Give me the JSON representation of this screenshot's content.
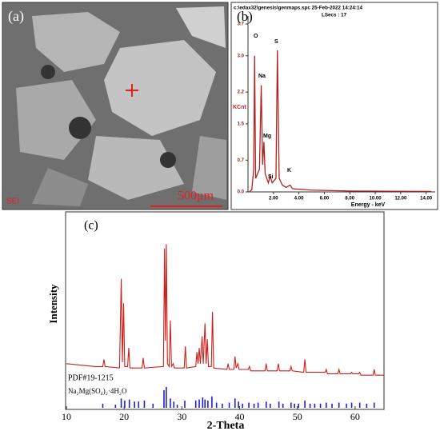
{
  "panel_a": {
    "label": "(a)",
    "detector": "SEI",
    "scale_bar": "500μm"
  },
  "chart_data": [
    {
      "type": "line",
      "panel_label": "(b)",
      "header": "c:\\edax32\\genesis\\genmaps.spc  25-Feb-2022 14:24:14",
      "subheader": "LSecs : 17",
      "y_label": "KCnt",
      "x_label": "Energy - keV",
      "peak_labels": [
        "O",
        "Na",
        "Mg",
        "Si",
        "S",
        "K"
      ],
      "x": [
        0.1,
        0.3,
        0.45,
        0.52,
        0.6,
        0.9,
        1.04,
        1.15,
        1.25,
        1.35,
        1.6,
        1.74,
        1.9,
        2.2,
        2.31,
        2.45,
        2.7,
        3.0,
        3.31,
        3.5,
        5,
        8,
        14.4
      ],
      "series": [
        {
          "color": "#b22222",
          "values": [
            0,
            0.05,
            0.5,
            3.0,
            0.3,
            0.5,
            2.35,
            0.6,
            1.1,
            0.4,
            0.2,
            0.35,
            0.2,
            0.3,
            3.12,
            0.3,
            0.15,
            0.1,
            0.15,
            0.07,
            0.04,
            0.02,
            0.01
          ]
        }
      ],
      "xlim": [
        0,
        14.4
      ],
      "ylim": [
        0,
        3.7
      ],
      "xticks": [
        {
          "value": 2,
          "label": "2.00"
        },
        {
          "value": 4,
          "label": "4.00"
        },
        {
          "value": 6,
          "label": "6.00"
        },
        {
          "value": 8,
          "label": "8.00"
        },
        {
          "value": 10,
          "label": "10.00"
        },
        {
          "value": 12,
          "label": "12.00"
        },
        {
          "value": 14,
          "label": "14.00"
        }
      ],
      "yticks": [
        {
          "value": 0,
          "label": "0.0"
        },
        0.7,
        1.5,
        2.2,
        {
          "value": 3,
          "label": "3.0"
        },
        3.7
      ]
    },
    {
      "type": "line",
      "panel_label": "(c)",
      "x_label": "2-Theta",
      "y_label": "Intensity",
      "x": [
        10,
        15,
        16.3,
        16.5,
        16.7,
        19.2,
        19.5,
        19.7,
        19.9,
        20.1,
        20.6,
        20.8,
        21.0,
        23.1,
        23.3,
        23.5,
        26.8,
        27.0,
        27.15,
        27.3,
        27.5,
        27.8,
        28.0,
        28.2,
        28.5,
        28.7,
        30.4,
        30.6,
        30.8,
        32.4,
        32.6,
        32.8,
        33.0,
        33.2,
        33.5,
        33.7,
        34.0,
        34.2,
        34.4,
        34.6,
        35.1,
        35.3,
        35.5,
        37.8,
        38.0,
        38.2,
        39.0,
        39.2,
        39.4,
        39.7,
        39.9,
        41.5,
        41.7,
        41.9,
        44.4,
        44.6,
        44.8,
        46.5,
        46.7,
        46.9,
        48.7,
        48.9,
        49.1,
        51.1,
        51.3,
        51.5,
        54.8,
        55.0,
        55.2,
        57.0,
        57.2,
        57.4,
        59.2,
        59.4,
        59.6,
        60.6,
        60.8,
        61.0,
        63.1,
        63.3,
        63.5,
        65
      ],
      "series": [
        {
          "color": "#cc1f1a",
          "values": [
            14,
            12,
            12,
            17,
            12,
            11,
            73,
            15,
            56,
            12,
            12,
            25,
            11,
            11,
            18,
            11,
            12,
            94,
            30,
            97,
            14,
            12,
            44,
            12,
            14,
            11,
            11,
            26,
            11,
            12,
            22,
            14,
            25,
            14,
            33,
            14,
            42,
            14,
            31,
            12,
            12,
            50,
            11,
            10,
            14,
            10,
            10,
            19,
            11,
            14,
            10,
            10,
            12,
            9,
            9,
            14,
            9,
            9,
            14,
            9,
            9,
            12,
            9,
            8,
            17,
            8,
            8,
            10,
            7,
            7,
            10,
            7,
            7,
            8,
            7,
            7,
            8,
            6,
            6,
            10,
            6,
            6
          ]
        }
      ],
      "xlim": [
        10,
        65
      ],
      "ylim": [
        0,
        100
      ],
      "xticks": [
        10,
        20,
        30,
        40,
        50,
        60
      ],
      "reference": {
        "label": "PDF#19-1215",
        "compound": "Na₂Mg(SO₄)₂·4H₂O",
        "color": "#1f1fd0",
        "ylim": [
          0,
          100
        ],
        "positions": [
          16.3,
          18.5,
          19.5,
          20.1,
          20.9,
          21.8,
          22.5,
          23.5,
          25.0,
          26.9,
          27.3,
          28.0,
          28.6,
          29.2,
          30.5,
          32.4,
          33.0,
          33.6,
          34.0,
          34.5,
          35.2,
          36.0,
          37.0,
          38.2,
          39.2,
          39.8,
          40.5,
          41.6,
          42.5,
          43.2,
          44.6,
          45.3,
          46.8,
          47.5,
          48.9,
          49.5,
          50.2,
          51.3,
          52.2,
          53.0,
          54.0,
          55.0,
          56.0,
          57.2,
          58.5,
          59.4,
          60.8,
          62.0,
          63.3
        ],
        "intensities": [
          20,
          15,
          45,
          35,
          40,
          30,
          30,
          35,
          20,
          85,
          100,
          45,
          30,
          15,
          35,
          35,
          40,
          50,
          40,
          35,
          55,
          25,
          20,
          25,
          45,
          30,
          20,
          25,
          20,
          25,
          30,
          20,
          30,
          20,
          25,
          20,
          20,
          35,
          20,
          20,
          20,
          25,
          20,
          25,
          20,
          25,
          25,
          20,
          25
        ]
      }
    }
  ]
}
